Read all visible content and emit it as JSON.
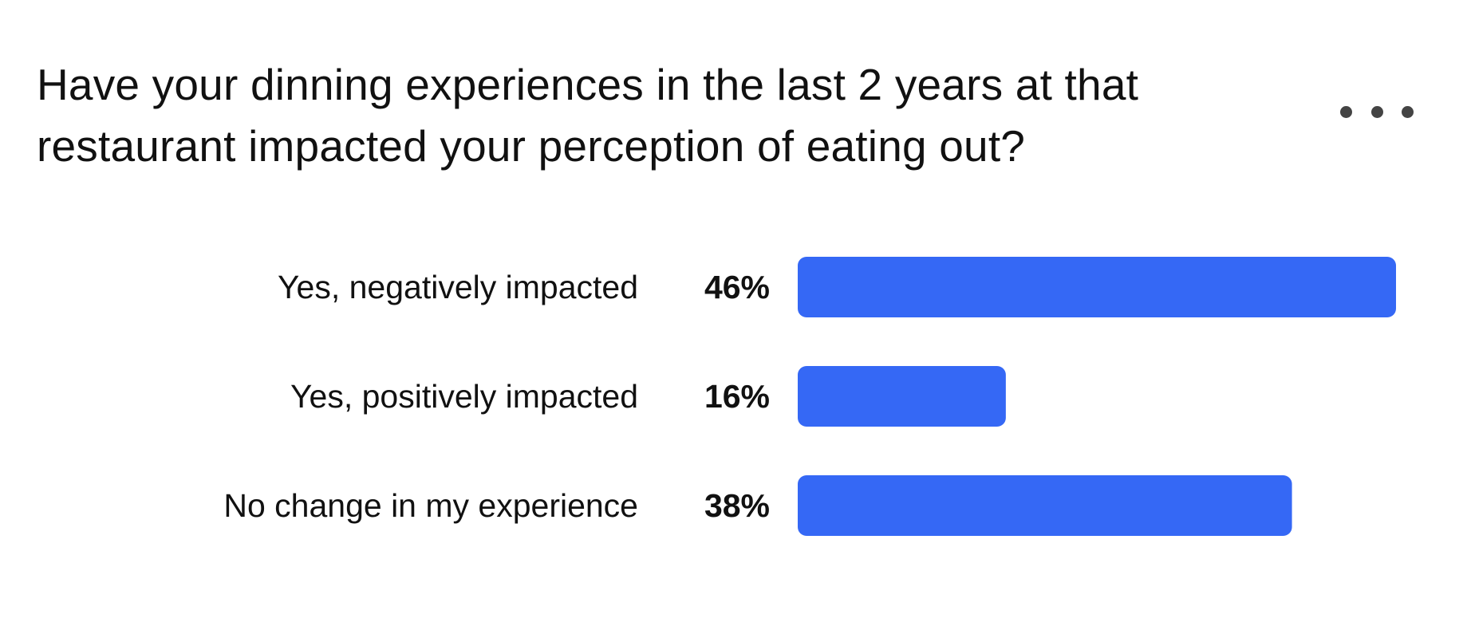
{
  "question": "Have your dinning experiences in the last 2 years at that restaurant impacted your perception of eating out?",
  "menu": {
    "icon": "more-horizontal-icon"
  },
  "colors": {
    "bar": "#3568F5",
    "text": "#111111",
    "menu_dots": "#444444",
    "background": "#ffffff"
  },
  "chart_data": {
    "type": "bar",
    "orientation": "horizontal",
    "title": "Have your dinning experiences in the last 2 years at that restaurant impacted your perception of eating out?",
    "categories": [
      "Yes, negatively impacted",
      "Yes, positively impacted",
      "No change in my experience"
    ],
    "values": [
      46,
      16,
      38
    ],
    "value_labels": [
      "46%",
      "16%",
      "38%"
    ],
    "unit": "%",
    "xlim": [
      0,
      46
    ],
    "grid": false,
    "legend": "none"
  }
}
